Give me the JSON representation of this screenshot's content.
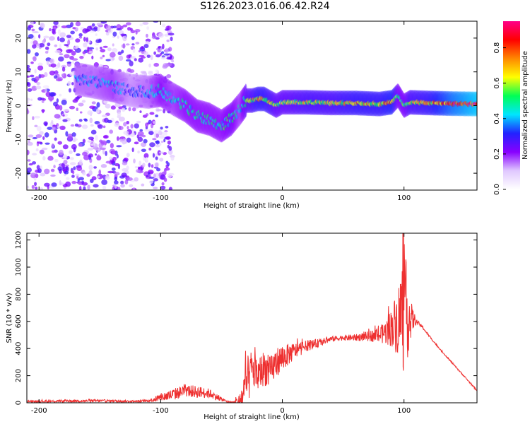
{
  "figure": {
    "title": "S126.2023.016.06.42.R24"
  },
  "chart_data": [
    {
      "type": "heatmap",
      "title": "",
      "xlabel": "Height of straight line (km)",
      "ylabel": "Frequency (Hz)",
      "xlim": [
        -210,
        160
      ],
      "ylim": [
        -25,
        25
      ],
      "xticks": [
        -200,
        -100,
        0,
        100
      ],
      "yticks": [
        -20,
        -10,
        0,
        10,
        20
      ],
      "colorbar": {
        "label": "Normalized spectral amplitude",
        "range": [
          0,
          0.95
        ],
        "ticks": [
          0.0,
          0.2,
          0.4,
          0.6,
          0.8
        ],
        "colors": [
          "#ffffff",
          "#e0c8ff",
          "#8800ff",
          "#2222ff",
          "#00e5ff",
          "#00ff55",
          "#ffff00",
          "#ff8800",
          "#ff0000",
          "#ff0088"
        ]
      },
      "ridge": {
        "x": [
          -170,
          -155,
          -140,
          -125,
          -110,
          -100,
          -90,
          -80,
          -70,
          -60,
          -50,
          -42,
          -35,
          -30,
          -25,
          -20,
          -15,
          -10,
          -5,
          0,
          20,
          40,
          60,
          80,
          90,
          95,
          100,
          105,
          120,
          140,
          160
        ],
        "frequency": [
          8,
          7,
          6,
          4.5,
          4,
          4.5,
          2,
          0,
          -3,
          -4,
          -6,
          -4,
          -1,
          1.5,
          1.5,
          2,
          2,
          1,
          0,
          1,
          1,
          0.8,
          0.8,
          0.5,
          1,
          3,
          0,
          1,
          0.8,
          0.6,
          0.5
        ],
        "amplitude": [
          0.35,
          0.35,
          0.4,
          0.3,
          0.35,
          0.45,
          0.4,
          0.45,
          0.45,
          0.45,
          0.45,
          0.5,
          0.4,
          0.55,
          0.6,
          0.65,
          0.65,
          0.6,
          0.55,
          0.55,
          0.6,
          0.6,
          0.65,
          0.65,
          0.7,
          0.5,
          0.5,
          0.6,
          0.65,
          0.8,
          0.9
        ]
      },
      "noise_region": {
        "x_range": [
          -210,
          -110
        ],
        "frequency_range": [
          -25,
          25
        ],
        "typical_amplitude": 0.15
      }
    },
    {
      "type": "line",
      "title": "",
      "xlabel": "Height of straight line (km)",
      "ylabel": "SNR (10 * v/v)",
      "xlim": [
        -210,
        160
      ],
      "ylim": [
        0,
        1250
      ],
      "xticks": [
        -200,
        -100,
        0,
        100
      ],
      "yticks": [
        0,
        200,
        400,
        600,
        800,
        1000,
        1200
      ],
      "series": [
        {
          "color": "#ee3030",
          "x": [
            -210,
            -150,
            -120,
            -110,
            -100,
            -90,
            -80,
            -70,
            -60,
            -50,
            -45,
            -40,
            -35,
            -32,
            -30,
            -25,
            -20,
            -15,
            -10,
            -5,
            0,
            10,
            20,
            30,
            40,
            50,
            60,
            70,
            80,
            85,
            90,
            95,
            100,
            103,
            106,
            110,
            115,
            120,
            130,
            140,
            150,
            155,
            160
          ],
          "y": [
            10,
            15,
            10,
            15,
            40,
            60,
            90,
            80,
            70,
            25,
            8,
            5,
            10,
            60,
            120,
            250,
            200,
            260,
            220,
            300,
            330,
            380,
            420,
            440,
            470,
            480,
            480,
            490,
            500,
            520,
            560,
            600,
            700,
            630,
            620,
            600,
            560,
            500,
            390,
            290,
            190,
            140,
            90
          ],
          "noise_amplitude": [
            8,
            10,
            8,
            10,
            30,
            45,
            45,
            45,
            35,
            15,
            5,
            5,
            60,
            150,
            200,
            150,
            130,
            130,
            120,
            110,
            100,
            60,
            40,
            30,
            20,
            20,
            25,
            35,
            60,
            90,
            150,
            250,
            500,
            300,
            120,
            20,
            10,
            8,
            5,
            5,
            5,
            5,
            5
          ]
        }
      ]
    }
  ]
}
